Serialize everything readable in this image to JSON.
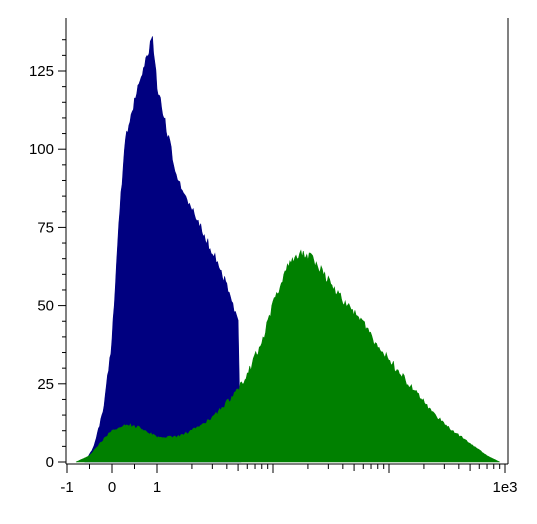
{
  "chart_data": {
    "type": "area",
    "title": "",
    "xlabel": "",
    "ylabel": "",
    "x_scale": "biexponential",
    "xlim": [
      -1.5,
      1000
    ],
    "ylim": [
      0,
      138
    ],
    "x_ticks": [
      {
        "value": -1,
        "label": "-1"
      },
      {
        "value": 0,
        "label": "0"
      },
      {
        "value": 1,
        "label": "1"
      },
      {
        "value": 1000,
        "label": "1e3"
      }
    ],
    "y_ticks": [
      {
        "value": 0,
        "label": "0"
      },
      {
        "value": 25,
        "label": "25"
      },
      {
        "value": 50,
        "label": "50"
      },
      {
        "value": 75,
        "label": "75"
      },
      {
        "value": 100,
        "label": "100"
      },
      {
        "value": 125,
        "label": "125"
      }
    ],
    "series": [
      {
        "color": "#000080",
        "x": [
          -0.6,
          -0.4,
          -0.2,
          0,
          0.15,
          0.3,
          0.45,
          0.6,
          0.75,
          0.9,
          1,
          1.2,
          1.5,
          2,
          2.5,
          3,
          3.5,
          4,
          4.5,
          5,
          5.3
        ],
        "y": [
          0,
          5,
          16,
          38,
          76,
          104,
          112,
          122,
          128,
          136,
          120,
          107,
          90,
          81,
          73,
          67,
          62,
          56,
          51,
          44,
          0
        ]
      },
      {
        "color": "#008000",
        "x": [
          -0.8,
          -0.5,
          -0.2,
          0,
          0.3,
          0.6,
          1,
          1.5,
          2,
          3,
          4,
          5,
          6,
          8,
          10,
          13,
          17,
          22,
          30,
          40,
          60,
          80,
          120,
          180,
          250,
          350,
          500,
          700,
          900
        ],
        "y": [
          0,
          2,
          7,
          10,
          12,
          11,
          8,
          8,
          10,
          14,
          19,
          23,
          28,
          38,
          50,
          62,
          67,
          65,
          58,
          52,
          44,
          37,
          29,
          21,
          15,
          10,
          6,
          2,
          0
        ]
      }
    ]
  }
}
